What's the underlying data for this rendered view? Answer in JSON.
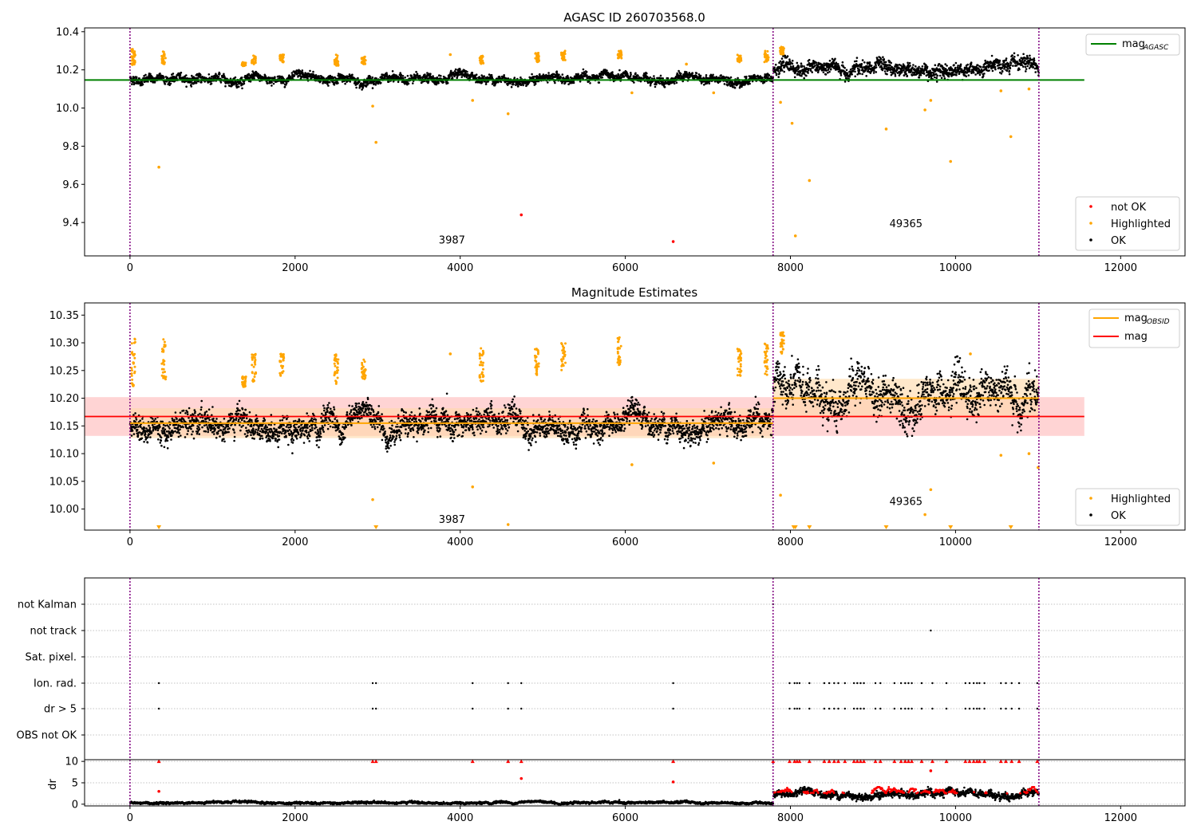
{
  "colors": {
    "ok": "#000000",
    "highlighted": "#ffa500",
    "not_ok": "#ff0000",
    "mag_agasc": "#008000",
    "mag_obsid": "#ffa500",
    "mag": "#ff0000",
    "band_mag": "#ffb0b0",
    "band_obsid": "#ffd8a8",
    "obs_boundary": "#800080",
    "grid": "#b0b0b0"
  },
  "chart_data": [
    {
      "type": "scatter",
      "title": "AGASC ID 260703568.0",
      "xlim": [
        -550,
        12780
      ],
      "ylim": [
        9.225,
        10.42
      ],
      "x_ticks": [
        0,
        2000,
        4000,
        6000,
        8000,
        10000,
        12000
      ],
      "y_ticks": [
        9.4,
        9.6,
        9.8,
        10.0,
        10.2,
        10.4
      ],
      "y_tick_labels": [
        "9.4",
        "9.6",
        "9.8",
        "10.0",
        "10.2",
        "10.4"
      ],
      "obs_boundaries": [
        0,
        7790,
        11010
      ],
      "annotations": [
        {
          "text": "3987",
          "x": 3900,
          "y": 9.29
        },
        {
          "text": "49365",
          "x": 9400,
          "y": 9.375
        }
      ],
      "legend_top": {
        "position": "top-right",
        "entries": [
          {
            "label": "mag",
            "sub": "AGASC",
            "color": "#008000"
          }
        ]
      },
      "legend_bottom": {
        "position": "lower-right",
        "entries": [
          {
            "label": "not OK",
            "color": "#ff0000"
          },
          {
            "label": "Highlighted",
            "color": "#ffa500"
          },
          {
            "label": "OK",
            "color": "#000000"
          }
        ]
      },
      "mag_agasc": {
        "value": 10.147,
        "x_range": [
          -550,
          11560
        ]
      },
      "series": [
        {
          "name": "OK",
          "segments": [
            {
              "x": [
                0,
                7790
              ],
              "mean": 10.152,
              "spread": 0.022
            },
            {
              "x": [
                7790,
                11010
              ],
              "mean": 10.205,
              "spread": 0.035
            }
          ]
        },
        {
          "name": "Highlighted",
          "clusters": [
            {
              "x": 40,
              "y": [
                10.22,
                10.31
              ]
            },
            {
              "x": 410,
              "y": [
                10.23,
                10.3
              ]
            },
            {
              "x": 1380,
              "y": [
                10.22,
                10.24
              ]
            },
            {
              "x": 1500,
              "y": [
                10.23,
                10.28
              ]
            },
            {
              "x": 1840,
              "y": [
                10.24,
                10.28
              ]
            },
            {
              "x": 2500,
              "y": [
                10.22,
                10.28
              ]
            },
            {
              "x": 2830,
              "y": [
                10.23,
                10.27
              ]
            },
            {
              "x": 4260,
              "y": [
                10.23,
                10.28
              ]
            },
            {
              "x": 4930,
              "y": [
                10.24,
                10.29
              ]
            },
            {
              "x": 5250,
              "y": [
                10.25,
                10.3
              ]
            },
            {
              "x": 5930,
              "y": [
                10.26,
                10.3
              ]
            },
            {
              "x": 7380,
              "y": [
                10.24,
                10.28
              ]
            },
            {
              "x": 7710,
              "y": [
                10.24,
                10.3
              ]
            },
            {
              "x": 7900,
              "y": [
                10.28,
                10.32
              ]
            }
          ],
          "points": [
            {
              "x": 350,
              "y": 9.69
            },
            {
              "x": 2940,
              "y": 10.01
            },
            {
              "x": 2980,
              "y": 9.82
            },
            {
              "x": 4150,
              "y": 10.04
            },
            {
              "x": 4580,
              "y": 9.97
            },
            {
              "x": 3880,
              "y": 10.28
            },
            {
              "x": 6080,
              "y": 10.08
            },
            {
              "x": 6740,
              "y": 10.23
            },
            {
              "x": 7070,
              "y": 10.08
            },
            {
              "x": 7880,
              "y": 10.03
            },
            {
              "x": 8020,
              "y": 9.92
            },
            {
              "x": 8060,
              "y": 9.33
            },
            {
              "x": 8230,
              "y": 9.62
            },
            {
              "x": 9160,
              "y": 9.89
            },
            {
              "x": 9630,
              "y": 9.99
            },
            {
              "x": 9700,
              "y": 10.04
            },
            {
              "x": 9940,
              "y": 9.72
            },
            {
              "x": 10670,
              "y": 9.85
            },
            {
              "x": 10890,
              "y": 10.1
            },
            {
              "x": 10550,
              "y": 10.09
            }
          ]
        },
        {
          "name": "not OK",
          "points": [
            {
              "x": 4740,
              "y": 9.44
            },
            {
              "x": 6580,
              "y": 9.3
            }
          ]
        }
      ]
    },
    {
      "type": "scatter",
      "title": "Magnitude Estimates",
      "xlim": [
        -550,
        12780
      ],
      "ylim": [
        9.962,
        10.372
      ],
      "x_ticks": [
        0,
        2000,
        4000,
        6000,
        8000,
        10000,
        12000
      ],
      "y_ticks": [
        10.0,
        10.05,
        10.1,
        10.15,
        10.2,
        10.25,
        10.3,
        10.35
      ],
      "y_tick_labels": [
        "10.00",
        "10.05",
        "10.10",
        "10.15",
        "10.20",
        "10.25",
        "10.30",
        "10.35"
      ],
      "obs_boundaries": [
        0,
        7790,
        11010
      ],
      "annotations": [
        {
          "text": "3987",
          "x": 3900,
          "y": 9.975
        },
        {
          "text": "49365",
          "x": 9400,
          "y": 10.007
        }
      ],
      "legend_top": {
        "position": "top-right",
        "entries": [
          {
            "label": "mag",
            "sub": "OBSID",
            "color": "#ffa500"
          },
          {
            "label": "mag",
            "color": "#ff0000"
          }
        ]
      },
      "legend_bottom": {
        "position": "lower-right",
        "entries": [
          {
            "label": "Highlighted",
            "color": "#ffa500"
          },
          {
            "label": "OK",
            "color": "#000000"
          }
        ]
      },
      "mag": {
        "value": 10.167,
        "band": [
          10.132,
          10.202
        ],
        "x_range": [
          -550,
          11560
        ]
      },
      "mag_obsid": [
        {
          "x": [
            0,
            7790
          ],
          "value": 10.155,
          "band": [
            10.128,
            10.182
          ]
        },
        {
          "x": [
            7790,
            11010
          ],
          "value": 10.2,
          "band": [
            10.165,
            10.235
          ]
        }
      ],
      "series": [
        {
          "name": "OK",
          "segments": [
            {
              "x": [
                0,
                7790
              ],
              "mean": 10.152,
              "spread": 0.022
            },
            {
              "x": [
                7790,
                11010
              ],
              "mean": 10.205,
              "spread": 0.035
            }
          ]
        },
        {
          "name": "Highlighted",
          "clusters": [
            {
              "x": 40,
              "y": [
                10.22,
                10.31
              ]
            },
            {
              "x": 410,
              "y": [
                10.23,
                10.31
              ]
            },
            {
              "x": 1380,
              "y": [
                10.22,
                10.24
              ]
            },
            {
              "x": 1500,
              "y": [
                10.23,
                10.28
              ]
            },
            {
              "x": 1840,
              "y": [
                10.24,
                10.28
              ]
            },
            {
              "x": 2500,
              "y": [
                10.22,
                10.28
              ]
            },
            {
              "x": 2830,
              "y": [
                10.23,
                10.27
              ]
            },
            {
              "x": 4260,
              "y": [
                10.23,
                10.29
              ]
            },
            {
              "x": 4930,
              "y": [
                10.24,
                10.29
              ]
            },
            {
              "x": 5250,
              "y": [
                10.25,
                10.3
              ]
            },
            {
              "x": 5930,
              "y": [
                10.26,
                10.31
              ]
            },
            {
              "x": 7380,
              "y": [
                10.24,
                10.29
              ]
            },
            {
              "x": 7710,
              "y": [
                10.24,
                10.3
              ]
            },
            {
              "x": 7900,
              "y": [
                10.28,
                10.32
              ]
            }
          ],
          "points": [
            {
              "x": 2940,
              "y": 10.017
            },
            {
              "x": 4150,
              "y": 10.04
            },
            {
              "x": 4580,
              "y": 9.972
            },
            {
              "x": 3880,
              "y": 10.28
            },
            {
              "x": 6080,
              "y": 10.08
            },
            {
              "x": 7070,
              "y": 10.083
            },
            {
              "x": 7880,
              "y": 10.025
            },
            {
              "x": 9630,
              "y": 9.99
            },
            {
              "x": 9700,
              "y": 10.035
            },
            {
              "x": 10550,
              "y": 10.097
            },
            {
              "x": 10890,
              "y": 10.1
            },
            {
              "x": 11000,
              "y": 10.075
            },
            {
              "x": 10180,
              "y": 10.28
            }
          ],
          "off_scale_x": [
            350,
            2980,
            8040,
            8060,
            8230,
            9160,
            9940,
            10670
          ]
        }
      ]
    },
    {
      "type": "scatter",
      "title": "",
      "xlim": [
        -550,
        12780
      ],
      "obs_boundaries": [
        0,
        7790,
        11010
      ],
      "x_ticks": [
        0,
        2000,
        4000,
        6000,
        8000,
        10000,
        12000
      ],
      "flag_rows": [
        "not Kalman",
        "not track",
        "Sat. pixel.",
        "Ion. rad.",
        "dr > 5",
        "OBS not OK"
      ],
      "flags": {
        "not Kalman": [
          7790
        ],
        "not track": [
          9700
        ],
        "Sat. pixel.": [],
        "Ion. rad.": [
          350,
          2940,
          2980,
          4150,
          4580,
          4740,
          6580,
          7990,
          8050,
          8080,
          8110,
          8230,
          8410,
          8470,
          8530,
          8580,
          8660,
          8770,
          8810,
          8850,
          8890,
          9030,
          9090,
          9260,
          9340,
          9390,
          9430,
          9470,
          9590,
          9720,
          9890,
          10120,
          10170,
          10220,
          10260,
          10290,
          10350,
          10550,
          10610,
          10680,
          10770,
          10990
        ],
        "dr > 5": [
          350,
          2940,
          2980,
          4150,
          4580,
          4740,
          6580,
          7990,
          8050,
          8080,
          8110,
          8230,
          8410,
          8470,
          8530,
          8580,
          8660,
          8770,
          8810,
          8850,
          8890,
          9030,
          9090,
          9260,
          9340,
          9390,
          9430,
          9470,
          9590,
          9720,
          9890,
          10120,
          10170,
          10220,
          10260,
          10290,
          10350,
          10550,
          10610,
          10680,
          10770,
          10990
        ],
        "OBS not OK": []
      },
      "dr_panel": {
        "ylabel": "dr",
        "ylim": [
          -0.4,
          10.4
        ],
        "y_ticks": [
          0,
          5,
          10
        ],
        "segments": [
          {
            "x": [
              0,
              7790
            ],
            "mean": 0.35,
            "spread": 0.25
          },
          {
            "x": [
              7790,
              11010
            ],
            "mean": 2.2,
            "spread": 0.8
          }
        ],
        "clipped_x": [
          350,
          2940,
          2980,
          4150,
          4580,
          4740,
          6580,
          7790,
          7990,
          8050,
          8080,
          8110,
          8230,
          8410,
          8470,
          8530,
          8580,
          8660,
          8770,
          8810,
          8850,
          8890,
          9030,
          9090,
          9260,
          9340,
          9390,
          9430,
          9470,
          9590,
          9720,
          9890,
          10120,
          10170,
          10220,
          10260,
          10290,
          10350,
          10550,
          10610,
          10680,
          10770,
          10990
        ],
        "red_points": [
          {
            "x": 350,
            "y": 3.0
          },
          {
            "x": 4740,
            "y": 6.0
          },
          {
            "x": 6580,
            "y": 5.2
          },
          {
            "x": 9700,
            "y": 7.8
          }
        ]
      }
    }
  ]
}
